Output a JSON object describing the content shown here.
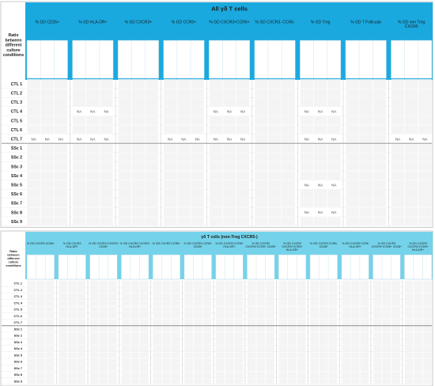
{
  "palette": {
    "header_top": "#1aa9df",
    "header_bottom": "#74d3ea",
    "row_band": "#c2dfb2",
    "row_label_bg": "#ffffff",
    "cell_na": "#ffffff",
    "cell_blank": "#f4f4f4",
    "scale_low": "#f18a8a",
    "scale_mid": "#ffe97a",
    "scale_high": "#7dc785",
    "divider": "#bcbcbc"
  },
  "chart_data": [
    {
      "type": "heatmap",
      "title": "All γδ T cells",
      "row_axis_label": "Ratio between different culture conditions",
      "row_group_colors": {
        "CTL": "#b9dca6",
        "SSc": "#e6d08c"
      },
      "groups": [
        {
          "name": "% GD CD25+"
        },
        {
          "name": "% GD HLA-DR+"
        },
        {
          "name": "% GD CXCR3+"
        },
        {
          "name": "% GD CCR6+"
        },
        {
          "name": "% GD CXCR3+CCR6+"
        },
        {
          "name": "% GD CXCR3- CCR6-"
        },
        {
          "name": "% GD Treg"
        },
        {
          "name": "% GD T Follicular"
        },
        {
          "name": "% GD non Treg CXCR5"
        }
      ],
      "columns_per_group": 3,
      "rows": [
        "CTL 1",
        "CTL 2",
        "CTL 3",
        "CTL 4",
        "CTL 5",
        "CTL 6",
        "CTL 7",
        "SSc 1",
        "SSc 2",
        "SSc 3",
        "SSc 4",
        "SSc 5",
        "SSc 6",
        "SSc 7",
        "SSc 8",
        "SSc 9"
      ],
      "value_range": [
        0,
        2.5
      ],
      "na_cells": [
        [
          3,
          3
        ],
        [
          3,
          4
        ],
        [
          3,
          5
        ],
        [
          3,
          12
        ],
        [
          3,
          13
        ],
        [
          3,
          14
        ],
        [
          3,
          18
        ],
        [
          3,
          19
        ],
        [
          3,
          20
        ],
        [
          6,
          0
        ],
        [
          6,
          1
        ],
        [
          6,
          2
        ],
        [
          6,
          3
        ],
        [
          6,
          4
        ],
        [
          6,
          5
        ],
        [
          6,
          9
        ],
        [
          6,
          10
        ],
        [
          6,
          11
        ],
        [
          6,
          12
        ],
        [
          6,
          13
        ],
        [
          6,
          14
        ],
        [
          6,
          18
        ],
        [
          6,
          19
        ],
        [
          6,
          20
        ],
        [
          6,
          24
        ],
        [
          6,
          25
        ],
        [
          6,
          26
        ],
        [
          11,
          18
        ],
        [
          11,
          19
        ],
        [
          11,
          20
        ],
        [
          14,
          18
        ],
        [
          14,
          19
        ],
        [
          14,
          20
        ]
      ],
      "cell_values": []
    },
    {
      "type": "heatmap",
      "title": "γδ T cells (non-Treg CXCR5-)",
      "row_axis_label": "Ratio between different culture conditions",
      "groups": [
        {
          "name": "% GD CXCR3 CD28+"
        },
        {
          "name": "% GD CXCR3 HLA-DR+"
        },
        {
          "name": "% GD CXCR3 CXCR3+ CD28+"
        },
        {
          "name": "% GD CXCR3 CXCR3+ HLA-DR+"
        },
        {
          "name": "% GD CXCR3 CCR6+"
        },
        {
          "name": "% GD CXCR3 CCR6+ CD28+"
        },
        {
          "name": "% GD CXCR3 CCR6+ HLA-DR+"
        },
        {
          "name": "% GD CXCR3 CXCR3+CCR6+ CD28+"
        },
        {
          "name": "% GD CXCR3 CXCR3+CCR6+ HLA-DR+"
        },
        {
          "name": "% GD CXCR3 CCR6- CD28+"
        },
        {
          "name": "% GD CXCR3 CCR6 HLA-DR+"
        },
        {
          "name": "% GD CXCR3 CXCR3+CCR6+ CD28+"
        },
        {
          "name": "% GD CXCR3 CXCR3+CCR6+ HLA-DR+"
        }
      ],
      "columns_per_group": 3,
      "rows": [
        "CTL 1",
        "CTL 2",
        "CTL 3",
        "CTL 4",
        "CTL 5",
        "CTL 6",
        "CTL 7",
        "SSc 1",
        "SSc 2",
        "SSc 3",
        "SSc 4",
        "SSc 5",
        "SSc 6",
        "SSc 7",
        "SSc 8",
        "SSc 9"
      ],
      "value_range": [
        0,
        2.5
      ],
      "na_cells": [],
      "cell_values": []
    }
  ]
}
